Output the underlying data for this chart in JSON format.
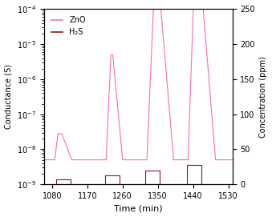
{
  "title": "",
  "xlabel": "Time (min)",
  "ylabel_left": "Conductance (S)",
  "ylabel_right": "Concentration (ppm)",
  "xlim": [
    1060,
    1540
  ],
  "ylim_right": [
    0,
    250
  ],
  "zno_color": "#FF69B4",
  "h2s_color": "#8B1A1A",
  "legend_labels": [
    "ZnO",
    "H₂S"
  ],
  "h2s_pulses": [
    {
      "t_start": 1090,
      "t_end": 1128,
      "ppm": 5
    },
    {
      "t_start": 1215,
      "t_end": 1252,
      "ppm": 10
    },
    {
      "t_start": 1318,
      "t_end": 1355,
      "ppm": 20
    },
    {
      "t_start": 1425,
      "t_end": 1462,
      "ppm": 30
    }
  ],
  "xticks": [
    1080,
    1170,
    1260,
    1350,
    1440,
    1530
  ],
  "yticks_right": [
    0,
    50,
    100,
    150,
    200,
    250
  ],
  "baseline": 5e-09,
  "zno_pulses": [
    {
      "t_start": 1087,
      "t_peak_start": 1095,
      "t_peak_end": 1105,
      "t_end": 1130,
      "peak_val": 2.8e-08
    },
    {
      "t_start": 1218,
      "t_peak_start": 1230,
      "t_peak_end": 1235,
      "t_end": 1260,
      "peak_val": 5e-06
    },
    {
      "t_start": 1322,
      "t_peak_start": 1340,
      "t_peak_end": 1355,
      "t_end": 1430,
      "peak_val": 0.00023
    },
    {
      "t_start": 1427,
      "t_peak_start": 1442,
      "t_peak_end": 1462,
      "t_end": 1530,
      "peak_val": 0.00032
    }
  ]
}
